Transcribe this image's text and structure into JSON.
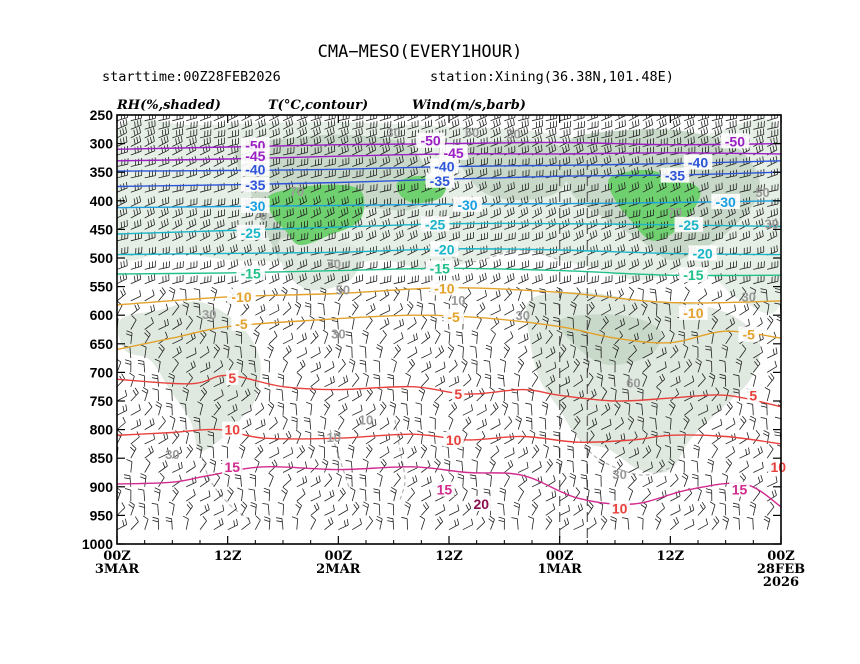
{
  "chart_data": {
    "type": "contour",
    "title": "CMA−MESO(EVERY1HOUR)",
    "starttime_label": "starttime:00Z28FEB2026",
    "station_label": "station:Xining(36.38N,101.48E)",
    "legend": [
      "RH(%,shaded)",
      "T(°C,contour)",
      "Wind(m/s,barb)"
    ],
    "ylim": [
      1000,
      250
    ],
    "y_ticks": [
      "250",
      "300",
      "350",
      "400",
      "450",
      "500",
      "550",
      "600",
      "650",
      "700",
      "750",
      "800",
      "850",
      "900",
      "950",
      "1000"
    ],
    "x_ticks": [
      {
        "hour": 72,
        "line1": "00Z",
        "line2": "3MAR",
        "line3": ""
      },
      {
        "hour": 60,
        "line1": "12Z",
        "line2": "",
        "line3": ""
      },
      {
        "hour": 48,
        "line1": "00Z",
        "line2": "2MAR",
        "line3": ""
      },
      {
        "hour": 36,
        "line1": "12Z",
        "line2": "",
        "line3": ""
      },
      {
        "hour": 24,
        "line1": "00Z",
        "line2": "1MAR",
        "line3": ""
      },
      {
        "hour": 12,
        "line1": "12Z",
        "line2": "",
        "line3": ""
      },
      {
        "hour": 0,
        "line1": "00Z",
        "line2": "28FEB",
        "line3": "2026"
      }
    ],
    "temperature_contours": [
      {
        "value": -50,
        "label": "-50",
        "color": "#9b1fc4",
        "p": [
          [
            72,
            310
          ],
          [
            60,
            306
          ],
          [
            48,
            302
          ],
          [
            36,
            300
          ],
          [
            24,
            298
          ],
          [
            12,
            302
          ],
          [
            0,
            300
          ]
        ]
      },
      {
        "value": -45,
        "label": "-45",
        "color": "#9b1fc4",
        "p": [
          [
            72,
            330
          ],
          [
            60,
            327
          ],
          [
            48,
            322
          ],
          [
            36,
            318
          ],
          [
            24,
            318
          ],
          [
            12,
            316
          ],
          [
            0,
            318
          ]
        ]
      },
      {
        "value": -40,
        "label": "-40",
        "color": "#2e55d9",
        "p": [
          [
            72,
            348
          ],
          [
            60,
            347
          ],
          [
            48,
            345
          ],
          [
            36,
            340
          ],
          [
            24,
            338
          ],
          [
            12,
            335
          ],
          [
            0,
            330
          ]
        ]
      },
      {
        "value": -35,
        "label": "-35",
        "color": "#2e55d9",
        "p": [
          [
            72,
            375
          ],
          [
            60,
            372
          ],
          [
            48,
            368
          ],
          [
            36,
            362
          ],
          [
            24,
            357
          ],
          [
            12,
            355
          ],
          [
            0,
            350
          ]
        ]
      },
      {
        "value": -30,
        "label": "-30",
        "color": "#1aa0e0",
        "p": [
          [
            72,
            412
          ],
          [
            60,
            410
          ],
          [
            48,
            408
          ],
          [
            36,
            406
          ],
          [
            24,
            405
          ],
          [
            12,
            403
          ],
          [
            0,
            400
          ]
        ]
      },
      {
        "value": -25,
        "label": "-25",
        "color": "#1ab5c8",
        "p": [
          [
            72,
            458
          ],
          [
            60,
            452
          ],
          [
            48,
            446
          ],
          [
            36,
            440
          ],
          [
            24,
            440
          ],
          [
            12,
            442
          ],
          [
            0,
            445
          ]
        ]
      },
      {
        "value": -20,
        "label": "-20",
        "color": "#1ab5c8",
        "p": [
          [
            72,
            494
          ],
          [
            60,
            492
          ],
          [
            48,
            490
          ],
          [
            36,
            484
          ],
          [
            24,
            486
          ],
          [
            12,
            492
          ],
          [
            0,
            494
          ]
        ]
      },
      {
        "value": -15,
        "label": "-15",
        "color": "#1fc08a",
        "p": [
          [
            72,
            528
          ],
          [
            60,
            526
          ],
          [
            48,
            522
          ],
          [
            36,
            518
          ],
          [
            24,
            522
          ],
          [
            12,
            530
          ],
          [
            0,
            530
          ]
        ]
      },
      {
        "value": -10,
        "label": "-10",
        "color": "#e3a22b",
        "p": [
          [
            72,
            582
          ],
          [
            60,
            568
          ],
          [
            48,
            562
          ],
          [
            36,
            552
          ],
          [
            24,
            560
          ],
          [
            12,
            578
          ],
          [
            0,
            575
          ]
        ]
      },
      {
        "value": -5,
        "label": "-5",
        "color": "#e3a22b",
        "p": [
          [
            72,
            660
          ],
          [
            66,
            640
          ],
          [
            60,
            620
          ],
          [
            50,
            608
          ],
          [
            40,
            600
          ],
          [
            32,
            605
          ],
          [
            24,
            620
          ],
          [
            18,
            640
          ],
          [
            12,
            648
          ],
          [
            6,
            628
          ],
          [
            0,
            640
          ]
        ]
      },
      {
        "value": 5,
        "label": "5",
        "color": "#e8403c",
        "p": [
          [
            72,
            712
          ],
          [
            64,
            720
          ],
          [
            60,
            705
          ],
          [
            54,
            725
          ],
          [
            48,
            730
          ],
          [
            40,
            725
          ],
          [
            34,
            738
          ],
          [
            28,
            730
          ],
          [
            24,
            740
          ],
          [
            18,
            750
          ],
          [
            12,
            745
          ],
          [
            6,
            740
          ],
          [
            0,
            760
          ]
        ]
      },
      {
        "value": 10,
        "label": "10",
        "color": "#e8403c",
        "p": [
          [
            72,
            810
          ],
          [
            66,
            805
          ],
          [
            61,
            800
          ],
          [
            56,
            815
          ],
          [
            48,
            815
          ],
          [
            40,
            808
          ],
          [
            34,
            818
          ],
          [
            28,
            812
          ],
          [
            22,
            822
          ],
          [
            16,
            818
          ],
          [
            12,
            810
          ],
          [
            6,
            812
          ],
          [
            0,
            825
          ]
        ]
      },
      {
        "value": 15,
        "label": "15",
        "color": "#d22b8e",
        "p": [
          [
            72,
            895
          ],
          [
            66,
            892
          ],
          [
            62,
            880
          ],
          [
            56,
            865
          ],
          [
            48,
            870
          ],
          [
            40,
            865
          ],
          [
            34,
            875
          ],
          [
            28,
            880
          ],
          [
            22,
            920
          ],
          [
            16,
            930
          ],
          [
            10,
            905
          ],
          [
            4,
            895
          ],
          [
            0,
            935
          ]
        ]
      }
    ],
    "temperature_labels": [
      {
        "text": "-50",
        "hour": 57.0,
        "p": 303,
        "color": "#9b1fc4"
      },
      {
        "text": "-50",
        "hour": 38.0,
        "p": 295,
        "color": "#9b1fc4"
      },
      {
        "text": "-50",
        "hour": 5.0,
        "p": 296,
        "color": "#9b1fc4"
      },
      {
        "text": "-45",
        "hour": 57.0,
        "p": 322,
        "color": "#9b1fc4"
      },
      {
        "text": "-45",
        "hour": 35.5,
        "p": 316,
        "color": "#9b1fc4"
      },
      {
        "text": "-40",
        "hour": 57.0,
        "p": 345,
        "color": "#2e55d9"
      },
      {
        "text": "-40",
        "hour": 36.5,
        "p": 340,
        "color": "#2e55d9"
      },
      {
        "text": "-40",
        "hour": 9.0,
        "p": 333,
        "color": "#2e55d9"
      },
      {
        "text": "-35",
        "hour": 57.0,
        "p": 372,
        "color": "#2e55d9"
      },
      {
        "text": "-35",
        "hour": 37.0,
        "p": 365,
        "color": "#2e55d9"
      },
      {
        "text": "-35",
        "hour": 11.5,
        "p": 356,
        "color": "#2e55d9"
      },
      {
        "text": "-30",
        "hour": 57.0,
        "p": 409,
        "color": "#1aa0e0"
      },
      {
        "text": "-30",
        "hour": 34.0,
        "p": 407,
        "color": "#1aa0e0"
      },
      {
        "text": "-30",
        "hour": 6.0,
        "p": 402,
        "color": "#1aa0e0"
      },
      {
        "text": "-25",
        "hour": 57.5,
        "p": 456,
        "color": "#1ab5c8"
      },
      {
        "text": "-25",
        "hour": 37.5,
        "p": 441,
        "color": "#1ab5c8"
      },
      {
        "text": "-25",
        "hour": 10.0,
        "p": 442,
        "color": "#1ab5c8"
      },
      {
        "text": "-20",
        "hour": 36.5,
        "p": 485,
        "color": "#1ab5c8"
      },
      {
        "text": "-20",
        "hour": 8.5,
        "p": 492,
        "color": "#1ab5c8"
      },
      {
        "text": "-15",
        "hour": 57.5,
        "p": 527,
        "color": "#1fc08a"
      },
      {
        "text": "-15",
        "hour": 37.0,
        "p": 518,
        "color": "#1fc08a"
      },
      {
        "text": "-15",
        "hour": 9.5,
        "p": 530,
        "color": "#1fc08a"
      },
      {
        "text": "-10",
        "hour": 58.5,
        "p": 568,
        "color": "#e3a22b"
      },
      {
        "text": "-10",
        "hour": 36.5,
        "p": 553,
        "color": "#e3a22b"
      },
      {
        "text": "-10",
        "hour": 9.5,
        "p": 596,
        "color": "#e3a22b"
      },
      {
        "text": "-5",
        "hour": 58.5,
        "p": 615,
        "color": "#e3a22b"
      },
      {
        "text": "-5",
        "hour": 35.5,
        "p": 603,
        "color": "#e3a22b"
      },
      {
        "text": "-5",
        "hour": 3.5,
        "p": 634,
        "color": "#e3a22b"
      },
      {
        "text": "5",
        "hour": 59.5,
        "p": 710,
        "color": "#e8403c"
      },
      {
        "text": "5",
        "hour": 35.0,
        "p": 738,
        "color": "#e8403c"
      },
      {
        "text": "5",
        "hour": 3.0,
        "p": 740,
        "color": "#e8403c"
      },
      {
        "text": "10",
        "hour": 59.5,
        "p": 800,
        "color": "#e8403c"
      },
      {
        "text": "10",
        "hour": 35.5,
        "p": 818,
        "color": "#e8403c"
      },
      {
        "text": "10",
        "hour": 17.5,
        "p": 938,
        "color": "#e8403c"
      },
      {
        "text": "10",
        "hour": 0.3,
        "p": 865,
        "color": "#e8403c"
      },
      {
        "text": "15",
        "hour": 59.5,
        "p": 865,
        "color": "#d22b8e"
      },
      {
        "text": "15",
        "hour": 36.5,
        "p": 905,
        "color": "#d22b8e"
      },
      {
        "text": "15",
        "hour": 4.5,
        "p": 905,
        "color": "#d22b8e"
      },
      {
        "text": "20",
        "hour": 32.5,
        "p": 930,
        "color": "#8b1050"
      }
    ],
    "rh_labels": [
      {
        "text": "30",
        "hour": 42.0,
        "p": 280
      },
      {
        "text": "50",
        "hour": 33.5,
        "p": 280
      },
      {
        "text": "30",
        "hour": 29.0,
        "p": 282
      },
      {
        "text": "70",
        "hour": 52.5,
        "p": 383
      },
      {
        "text": "70",
        "hour": 56.5,
        "p": 425
      },
      {
        "text": "50",
        "hour": 2.0,
        "p": 385
      },
      {
        "text": "30",
        "hour": 1.0,
        "p": 440
      },
      {
        "text": "70",
        "hour": 11.5,
        "p": 420
      },
      {
        "text": "70",
        "hour": 48.5,
        "p": 510
      },
      {
        "text": "50",
        "hour": 47.5,
        "p": 555
      },
      {
        "text": "30",
        "hour": 62.0,
        "p": 598
      },
      {
        "text": "30",
        "hour": 28.0,
        "p": 600
      },
      {
        "text": "10",
        "hour": 35.0,
        "p": 573
      },
      {
        "text": "30",
        "hour": 48.0,
        "p": 632
      },
      {
        "text": "30",
        "hour": 3.5,
        "p": 567
      },
      {
        "text": "60",
        "hour": 16.0,
        "p": 718
      },
      {
        "text": "10",
        "hour": 45.0,
        "p": 782
      },
      {
        "text": "10",
        "hour": 48.5,
        "p": 813
      },
      {
        "text": "30",
        "hour": 66.0,
        "p": 843
      },
      {
        "text": "30",
        "hour": 17.5,
        "p": 878
      }
    ],
    "wind_barbs": "barbs at every hour on levels 250-1000 hPa; 25-35 m/s aloft (W/SW), 5-10 m/s below 650 hPa"
  }
}
